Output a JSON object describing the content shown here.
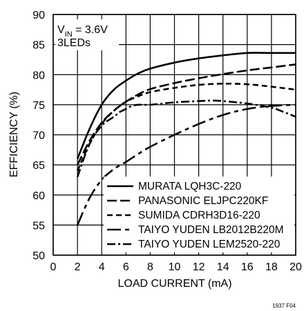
{
  "chart_data": {
    "type": "line",
    "xlabel": "LOAD CURRENT (mA)",
    "ylabel": "EFFICIENCY (%)",
    "xlim": [
      0,
      20
    ],
    "ylim": [
      50,
      90
    ],
    "xticks": [
      0,
      2,
      4,
      6,
      8,
      10,
      12,
      14,
      16,
      18,
      20
    ],
    "yticks": [
      50,
      55,
      60,
      65,
      70,
      75,
      80,
      85,
      90
    ],
    "grid": true,
    "legend_position": "bottom-right",
    "annotation": {
      "vin_prefix": "V",
      "vin_sub": "IN",
      "vin_value": " = 3.6V",
      "leds": "3LEDs"
    },
    "figure_id": "1937 F04",
    "series": [
      {
        "name": "MURATA LQH3C-220",
        "dash": "solid",
        "points": [
          [
            2,
            66
          ],
          [
            3,
            71
          ],
          [
            4,
            75
          ],
          [
            5,
            77.5
          ],
          [
            6,
            79
          ],
          [
            7,
            80.2
          ],
          [
            8,
            81
          ],
          [
            10,
            82
          ],
          [
            12,
            82.7
          ],
          [
            14,
            83.2
          ],
          [
            16,
            83.6
          ],
          [
            18,
            83.6
          ],
          [
            20,
            83.6
          ]
        ]
      },
      {
        "name": "PANASONIC ELJPC220KF",
        "dash": "long",
        "points": [
          [
            2,
            65
          ],
          [
            3,
            69
          ],
          [
            4,
            72
          ],
          [
            5,
            74
          ],
          [
            6,
            75.5
          ],
          [
            7,
            76.7
          ],
          [
            8,
            77.6
          ],
          [
            10,
            78.6
          ],
          [
            12,
            79.4
          ],
          [
            14,
            80.1
          ],
          [
            16,
            80.7
          ],
          [
            18,
            81.2
          ],
          [
            20,
            81.7
          ]
        ]
      },
      {
        "name": "SUMIDA CDRH3D16-220",
        "dash": "medium",
        "points": [
          [
            2,
            64
          ],
          [
            3,
            68.5
          ],
          [
            4,
            71.8
          ],
          [
            5,
            74
          ],
          [
            6,
            75.5
          ],
          [
            7,
            76.4
          ],
          [
            8,
            77.1
          ],
          [
            10,
            77.8
          ],
          [
            12,
            78.3
          ],
          [
            14,
            78.5
          ],
          [
            16,
            78.4
          ],
          [
            18,
            78
          ],
          [
            20,
            77.5
          ]
        ]
      },
      {
        "name": "TAIYO YUDEN LB2012B220M",
        "dash": "longshort",
        "points": [
          [
            2,
            55
          ],
          [
            3,
            59.5
          ],
          [
            4,
            62.5
          ],
          [
            5,
            64.3
          ],
          [
            6,
            65.5
          ],
          [
            7,
            66.8
          ],
          [
            8,
            68
          ],
          [
            10,
            70
          ],
          [
            12,
            71.8
          ],
          [
            14,
            73.3
          ],
          [
            16,
            74.3
          ],
          [
            18,
            74.8
          ],
          [
            20,
            75
          ]
        ]
      },
      {
        "name": "TAIYO YUDEN LEM2520-220",
        "dash": "dashdot",
        "points": [
          [
            2,
            63
          ],
          [
            3,
            68.5
          ],
          [
            4,
            71.5
          ],
          [
            5,
            73
          ],
          [
            5.5,
            73.8
          ],
          [
            6,
            74.3
          ],
          [
            6.5,
            74.8
          ],
          [
            7,
            75
          ],
          [
            8,
            75
          ],
          [
            10,
            75.4
          ],
          [
            12,
            75.6
          ],
          [
            13,
            75.7
          ],
          [
            14,
            75.6
          ],
          [
            16,
            75.2
          ],
          [
            18,
            74.5
          ],
          [
            19,
            73.8
          ],
          [
            20,
            73
          ]
        ]
      }
    ]
  }
}
